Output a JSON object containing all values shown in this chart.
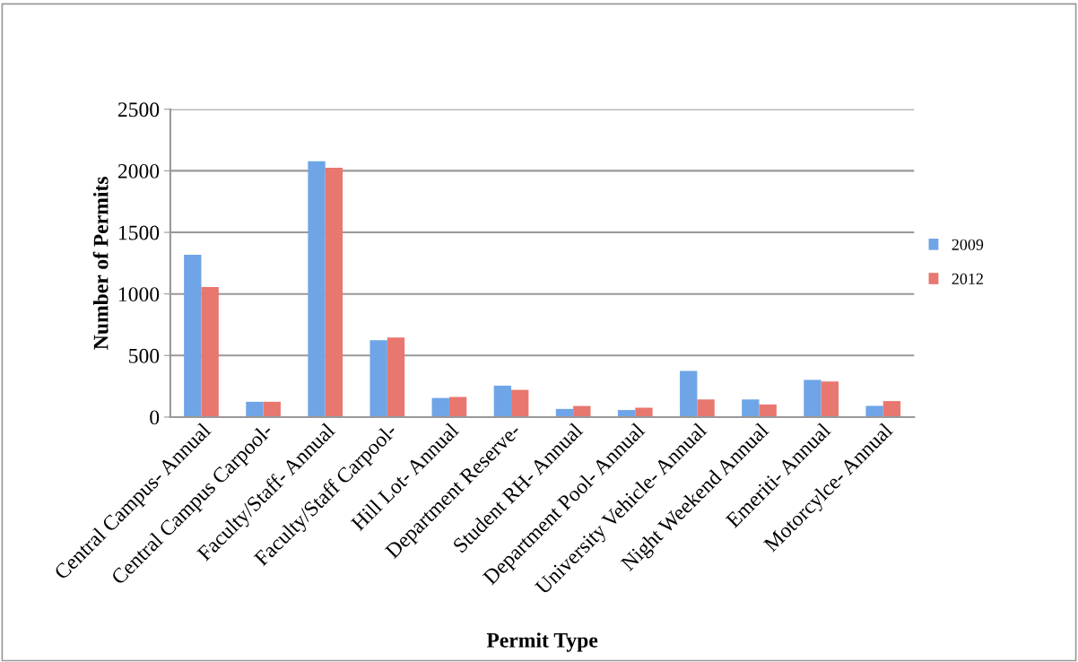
{
  "chart_data": {
    "type": "bar",
    "xlabel": "Permit Type",
    "ylabel": "Number of Permits",
    "categories": [
      "Central Campus- Annual",
      "Central Campus Carpool-",
      "Faculty/Staff- Annual",
      "Faculty/Staff Carpool-",
      "Hill Lot- Annual",
      "Department Reserve-",
      "Student RH- Annual",
      "Department Pool- Annual",
      "University Vehicle- Annual",
      "Night Weekend Annual",
      "Emeriti- Annual",
      "Motorcylce- Annual"
    ],
    "series": [
      {
        "name": "2009",
        "color": "#6fa5e6",
        "values": [
          1318,
          124,
          2078,
          624,
          155,
          255,
          66,
          57,
          375,
          143,
          302,
          91
        ]
      },
      {
        "name": "2012",
        "color": "#e8776f",
        "values": [
          1056,
          124,
          2024,
          646,
          163,
          221,
          90,
          76,
          143,
          102,
          289,
          130
        ]
      }
    ],
    "ylim": [
      0,
      2500
    ],
    "yticks": [
      0,
      500,
      1000,
      1500,
      2000,
      2500
    ],
    "grid": "y",
    "legend": "right"
  }
}
